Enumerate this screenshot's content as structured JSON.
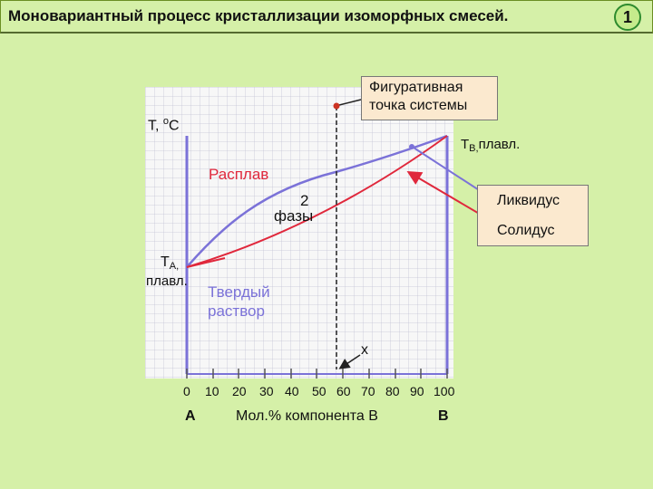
{
  "slide": {
    "title": "Моновариантный процесс кристаллизации изоморфных смесей.",
    "page_number": "1"
  },
  "diagram": {
    "y_axis_label_prefix": "T, ",
    "y_axis_label_degree": "o",
    "y_axis_label_unit": "C",
    "figurative_point_label_line1": "Фигуративная",
    "figurative_point_label_line2": "точка системы",
    "tb_label_main": "T",
    "tb_label_sub": "B,",
    "tb_label_rest": "плавл.",
    "melt_label": "Расплав",
    "two_phases_num": "2",
    "two_phases_word": "фазы",
    "liquidus_label": "Ликвидус",
    "solidus_label": "Солидус",
    "ta_label_main": "T",
    "ta_label_sub": "A,",
    "ta_label_line2": "плавл.",
    "solid_solution_line1": "Твердый",
    "solid_solution_line2": "раствор",
    "x_marker_label": "x",
    "x_ticks": [
      "0",
      "10",
      "20",
      "30",
      "40",
      "50",
      "60",
      "70",
      "80",
      "90",
      "100"
    ],
    "component_a": "A",
    "x_axis_caption": "Мол.% компонента В",
    "component_b": "B",
    "colors": {
      "axis": "#7b72d8",
      "liquidus": "#7b72d8",
      "solidus": "#e0283c",
      "arrow": "#e0283c",
      "point": "#cc3322",
      "background": "#d5f0a8",
      "box": "#fbe9cf"
    }
  }
}
